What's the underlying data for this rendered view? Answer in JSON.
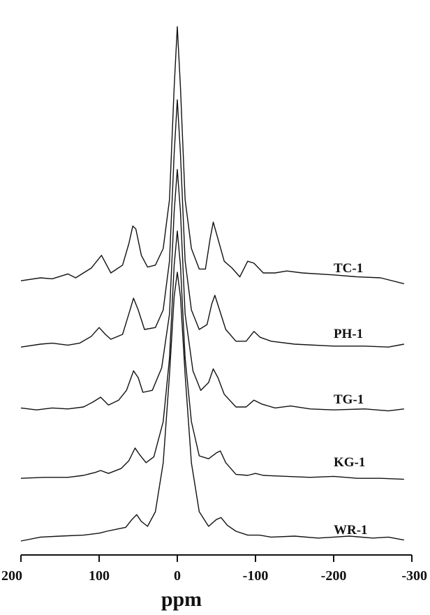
{
  "chart_data": {
    "type": "line",
    "title": "",
    "xlabel": "ppm",
    "ylabel": "",
    "xlim": [
      200,
      -300
    ],
    "x_reversed": true,
    "grid": false,
    "legend": "none",
    "xticks": [
      200,
      100,
      0,
      -100,
      -200,
      -300
    ],
    "xtick_labels": [
      "200",
      "100",
      "0",
      "-100",
      "-200",
      "-300"
    ],
    "line_color": "#111111",
    "series": [
      {
        "name": "TC-1",
        "points": [
          [
            200,
            0.02
          ],
          [
            175,
            0.05
          ],
          [
            160,
            0.04
          ],
          [
            140,
            0.09
          ],
          [
            130,
            0.05
          ],
          [
            110,
            0.15
          ],
          [
            97,
            0.28
          ],
          [
            85,
            0.1
          ],
          [
            70,
            0.18
          ],
          [
            62,
            0.4
          ],
          [
            57,
            0.58
          ],
          [
            53,
            0.55
          ],
          [
            46,
            0.28
          ],
          [
            38,
            0.16
          ],
          [
            28,
            0.18
          ],
          [
            18,
            0.35
          ],
          [
            10,
            0.85
          ],
          [
            4,
            2.0
          ],
          [
            0,
            2.62
          ],
          [
            -4,
            2.0
          ],
          [
            -10,
            0.85
          ],
          [
            -18,
            0.35
          ],
          [
            -28,
            0.14
          ],
          [
            -36,
            0.14
          ],
          [
            -42,
            0.45
          ],
          [
            -46,
            0.62
          ],
          [
            -52,
            0.45
          ],
          [
            -60,
            0.22
          ],
          [
            -70,
            0.15
          ],
          [
            -80,
            0.06
          ],
          [
            -90,
            0.22
          ],
          [
            -98,
            0.2
          ],
          [
            -110,
            0.1
          ],
          [
            -125,
            0.1
          ],
          [
            -140,
            0.12
          ],
          [
            -160,
            0.1
          ],
          [
            -200,
            0.08
          ],
          [
            -230,
            0.06
          ],
          [
            -260,
            0.05
          ],
          [
            -290,
            -0.01
          ]
        ]
      },
      {
        "name": "PH-1",
        "points": [
          [
            200,
            0.02
          ],
          [
            175,
            0.05
          ],
          [
            160,
            0.06
          ],
          [
            140,
            0.04
          ],
          [
            125,
            0.06
          ],
          [
            110,
            0.13
          ],
          [
            100,
            0.22
          ],
          [
            92,
            0.15
          ],
          [
            85,
            0.1
          ],
          [
            70,
            0.15
          ],
          [
            62,
            0.36
          ],
          [
            56,
            0.52
          ],
          [
            50,
            0.4
          ],
          [
            42,
            0.2
          ],
          [
            28,
            0.22
          ],
          [
            18,
            0.4
          ],
          [
            10,
            0.9
          ],
          [
            4,
            2.0
          ],
          [
            0,
            2.55
          ],
          [
            -4,
            2.0
          ],
          [
            -10,
            0.9
          ],
          [
            -18,
            0.4
          ],
          [
            -28,
            0.2
          ],
          [
            -38,
            0.25
          ],
          [
            -44,
            0.46
          ],
          [
            -48,
            0.55
          ],
          [
            -54,
            0.4
          ],
          [
            -62,
            0.2
          ],
          [
            -75,
            0.08
          ],
          [
            -88,
            0.08
          ],
          [
            -98,
            0.18
          ],
          [
            -106,
            0.12
          ],
          [
            -120,
            0.08
          ],
          [
            -150,
            0.05
          ],
          [
            -200,
            0.03
          ],
          [
            -240,
            0.03
          ],
          [
            -270,
            0.02
          ],
          [
            -290,
            0.05
          ]
        ]
      },
      {
        "name": "TG-1",
        "points": [
          [
            200,
            0.04
          ],
          [
            180,
            0.02
          ],
          [
            160,
            0.04
          ],
          [
            140,
            0.03
          ],
          [
            120,
            0.05
          ],
          [
            108,
            0.1
          ],
          [
            98,
            0.15
          ],
          [
            88,
            0.07
          ],
          [
            75,
            0.12
          ],
          [
            65,
            0.22
          ],
          [
            56,
            0.42
          ],
          [
            50,
            0.35
          ],
          [
            44,
            0.2
          ],
          [
            32,
            0.22
          ],
          [
            20,
            0.45
          ],
          [
            10,
            1.0
          ],
          [
            4,
            2.05
          ],
          [
            0,
            2.48
          ],
          [
            -4,
            2.05
          ],
          [
            -10,
            1.0
          ],
          [
            -20,
            0.42
          ],
          [
            -30,
            0.22
          ],
          [
            -40,
            0.3
          ],
          [
            -46,
            0.44
          ],
          [
            -52,
            0.35
          ],
          [
            -60,
            0.18
          ],
          [
            -75,
            0.05
          ],
          [
            -88,
            0.05
          ],
          [
            -98,
            0.12
          ],
          [
            -108,
            0.08
          ],
          [
            -125,
            0.04
          ],
          [
            -145,
            0.06
          ],
          [
            -170,
            0.03
          ],
          [
            -200,
            0.02
          ],
          [
            -240,
            0.03
          ],
          [
            -270,
            0.01
          ],
          [
            -290,
            0.03
          ]
        ]
      },
      {
        "name": "KG-1",
        "points": [
          [
            200,
            0.02
          ],
          [
            170,
            0.03
          ],
          [
            140,
            0.03
          ],
          [
            120,
            0.05
          ],
          [
            105,
            0.08
          ],
          [
            98,
            0.1
          ],
          [
            88,
            0.07
          ],
          [
            72,
            0.12
          ],
          [
            62,
            0.2
          ],
          [
            54,
            0.33
          ],
          [
            48,
            0.26
          ],
          [
            40,
            0.18
          ],
          [
            30,
            0.24
          ],
          [
            18,
            0.6
          ],
          [
            10,
            1.25
          ],
          [
            4,
            2.2
          ],
          [
            0,
            2.55
          ],
          [
            -4,
            2.2
          ],
          [
            -10,
            1.25
          ],
          [
            -18,
            0.6
          ],
          [
            -28,
            0.25
          ],
          [
            -40,
            0.22
          ],
          [
            -50,
            0.28
          ],
          [
            -55,
            0.3
          ],
          [
            -62,
            0.18
          ],
          [
            -75,
            0.06
          ],
          [
            -90,
            0.05
          ],
          [
            -100,
            0.07
          ],
          [
            -110,
            0.05
          ],
          [
            -140,
            0.04
          ],
          [
            -170,
            0.03
          ],
          [
            -200,
            0.04
          ],
          [
            -230,
            0.02
          ],
          [
            -260,
            0.02
          ],
          [
            -290,
            0.01
          ]
        ]
      },
      {
        "name": "WR-1",
        "points": [
          [
            200,
            0.0
          ],
          [
            175,
            0.04
          ],
          [
            150,
            0.05
          ],
          [
            120,
            0.06
          ],
          [
            100,
            0.08
          ],
          [
            90,
            0.1
          ],
          [
            78,
            0.12
          ],
          [
            66,
            0.14
          ],
          [
            58,
            0.22
          ],
          [
            52,
            0.27
          ],
          [
            46,
            0.2
          ],
          [
            38,
            0.15
          ],
          [
            28,
            0.3
          ],
          [
            18,
            0.8
          ],
          [
            10,
            1.7
          ],
          [
            4,
            2.5
          ],
          [
            0,
            2.75
          ],
          [
            -4,
            2.5
          ],
          [
            -10,
            1.7
          ],
          [
            -18,
            0.8
          ],
          [
            -28,
            0.3
          ],
          [
            -40,
            0.15
          ],
          [
            -50,
            0.22
          ],
          [
            -56,
            0.24
          ],
          [
            -64,
            0.16
          ],
          [
            -75,
            0.1
          ],
          [
            -90,
            0.06
          ],
          [
            -105,
            0.06
          ],
          [
            -120,
            0.04
          ],
          [
            -150,
            0.05
          ],
          [
            -180,
            0.03
          ],
          [
            -200,
            0.04
          ],
          [
            -220,
            0.05
          ],
          [
            -250,
            0.03
          ],
          [
            -270,
            0.04
          ],
          [
            -290,
            0.01
          ]
        ]
      }
    ]
  }
}
